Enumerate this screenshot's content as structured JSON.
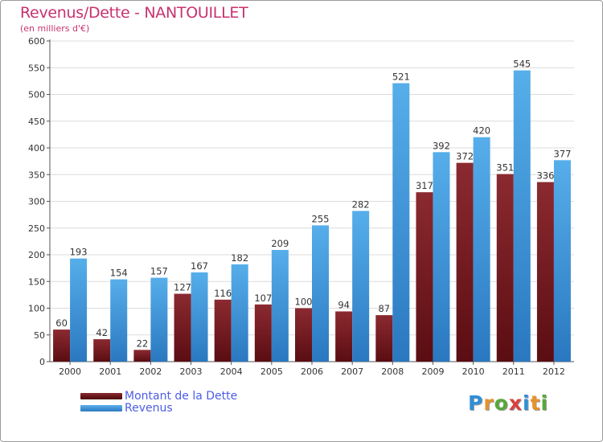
{
  "chart_data": {
    "type": "bar",
    "title": "Revenus/Dette - NANTOUILLET",
    "subtitle": "(en milliers d'€)",
    "categories": [
      "2000",
      "2001",
      "2002",
      "2003",
      "2004",
      "2005",
      "2006",
      "2007",
      "2008",
      "2009",
      "2010",
      "2011",
      "2012"
    ],
    "series": [
      {
        "name": "Montant de la Dette",
        "color": "#8b1f24",
        "values": [
          60,
          42,
          22,
          127,
          116,
          107,
          100,
          94,
          87,
          317,
          372,
          351,
          336
        ]
      },
      {
        "name": "Revenus",
        "color": "#3d96dc",
        "values": [
          193,
          154,
          157,
          167,
          182,
          209,
          255,
          282,
          521,
          392,
          420,
          545,
          377
        ]
      }
    ],
    "ylim": [
      0,
      600
    ],
    "yticks": [
      0,
      50,
      100,
      150,
      200,
      250,
      300,
      350,
      400,
      450,
      500,
      550,
      600
    ],
    "grid": true,
    "legend": "bottom-left"
  },
  "logo": {
    "letters": [
      {
        "ch": "P",
        "color": "#2f8fd8"
      },
      {
        "ch": "r",
        "color": "#e8912a"
      },
      {
        "ch": "o",
        "color": "#58a83a"
      },
      {
        "ch": "x",
        "color": "#d94040"
      },
      {
        "ch": "i",
        "color": "#2f8fd8"
      },
      {
        "ch": "t",
        "color": "#e8912a"
      },
      {
        "ch": "i",
        "color": "#58a83a"
      }
    ]
  }
}
